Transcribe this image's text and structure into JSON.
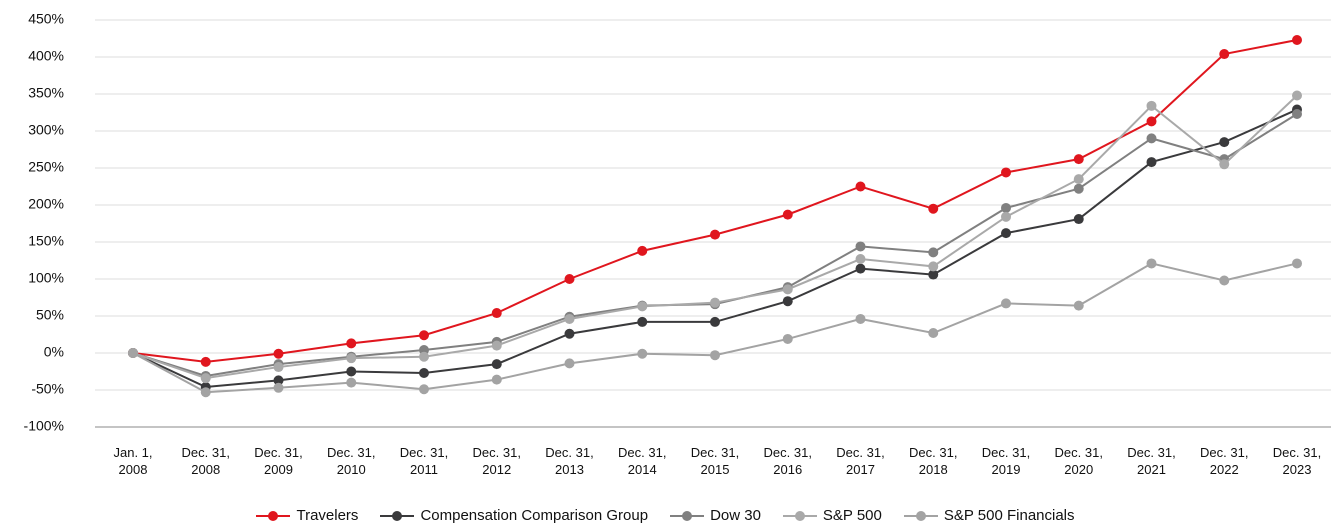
{
  "chart_data": {
    "type": "line",
    "categories": [
      "Jan. 1, 2008",
      "Dec. 31, 2008",
      "Dec. 31, 2009",
      "Dec. 31, 2010",
      "Dec. 31, 2011",
      "Dec. 31, 2012",
      "Dec. 31, 2013",
      "Dec. 31, 2014",
      "Dec. 31, 2015",
      "Dec. 31, 2016",
      "Dec. 31, 2017",
      "Dec. 31, 2018",
      "Dec. 31, 2019",
      "Dec. 31, 2020",
      "Dec. 31, 2021",
      "Dec. 31, 2022",
      "Dec. 31, 2023"
    ],
    "series": [
      {
        "name": "Travelers",
        "color": "#e0161e",
        "values": [
          0,
          -12,
          -1,
          13,
          24,
          54,
          100,
          138,
          160,
          187,
          225,
          195,
          244,
          262,
          313,
          404,
          423
        ]
      },
      {
        "name": "Compensation Comparison Group",
        "color": "#3a3a3c",
        "values": [
          0,
          -46,
          -37,
          -25,
          -27,
          -15,
          26,
          42,
          42,
          70,
          114,
          106,
          162,
          181,
          258,
          285,
          329
        ]
      },
      {
        "name": "Dow 30",
        "color": "#808080",
        "values": [
          0,
          -31,
          -15,
          -5,
          4,
          15,
          49,
          64,
          66,
          89,
          144,
          136,
          196,
          222,
          290,
          262,
          323
        ]
      },
      {
        "name": "S&P 500",
        "color": "#a9a9a9",
        "values": [
          0,
          -34,
          -19,
          -7,
          -5,
          10,
          46,
          63,
          68,
          86,
          127,
          117,
          184,
          235,
          334,
          255,
          348
        ]
      },
      {
        "name": "S&P 500 Financials",
        "color": "#a3a3a3",
        "values": [
          0,
          -53,
          -47,
          -40,
          -49,
          -36,
          -14,
          -1,
          -3,
          19,
          46,
          27,
          67,
          64,
          121,
          98,
          121
        ]
      }
    ],
    "ylim": [
      -100,
      450
    ],
    "yticks": [
      {
        "value": -100,
        "label": "-100%"
      },
      {
        "value": -50,
        "label": "-50%"
      },
      {
        "value": 0,
        "label": "0%"
      },
      {
        "value": 50,
        "label": "50%"
      },
      {
        "value": 100,
        "label": "100%"
      },
      {
        "value": 150,
        "label": "150%"
      },
      {
        "value": 200,
        "label": "200%"
      },
      {
        "value": 250,
        "label": "250%"
      },
      {
        "value": 300,
        "label": "300%"
      },
      {
        "value": 350,
        "label": "350%"
      },
      {
        "value": 400,
        "label": "400%"
      },
      {
        "value": 450,
        "label": "450%"
      }
    ],
    "grid": true
  }
}
